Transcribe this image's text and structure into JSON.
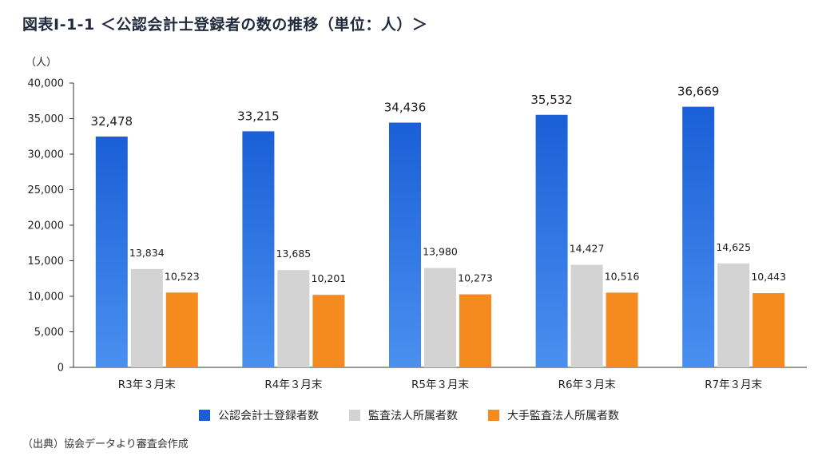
{
  "title": "図表Ⅰ-1-1 ＜公認会計士登録者の数の推移（単位：人）＞",
  "source": "（出典）協会データより審査会作成",
  "colors": {
    "series1": "#1a5fd6",
    "series1_light": "#4a90f0",
    "series2": "#d3d3d3",
    "series3": "#f58a1f",
    "axis": "#333333"
  },
  "chart_data": {
    "type": "bar",
    "unit_label": "（人）",
    "categories": [
      "R3年３月末",
      "R4年３月末",
      "R5年３月末",
      "R6年３月末",
      "R7年３月末"
    ],
    "series": [
      {
        "name": "公認会計士登録者数",
        "values": [
          32478,
          33215,
          34436,
          35532,
          36669
        ]
      },
      {
        "name": "監査法人所属者数",
        "values": [
          13834,
          13685,
          13980,
          14427,
          14625
        ]
      },
      {
        "name": "大手監査法人所属者数",
        "values": [
          10523,
          10201,
          10273,
          10516,
          10443
        ]
      }
    ],
    "value_labels": [
      [
        "32,478",
        "33,215",
        "34,436",
        "35,532",
        "36,669"
      ],
      [
        "13,834",
        "13,685",
        "13,980",
        "14,427",
        "14,625"
      ],
      [
        "10,523",
        "10,201",
        "10,273",
        "10,516",
        "10,443"
      ]
    ],
    "yticks": [
      0,
      5000,
      10000,
      15000,
      20000,
      25000,
      30000,
      35000,
      40000
    ],
    "ytick_labels": [
      "0",
      "5,000",
      "10,000",
      "15,000",
      "20,000",
      "25,000",
      "30,000",
      "35,000",
      "40,000"
    ],
    "ylim": [
      0,
      40000
    ],
    "grid": false,
    "legend_position": "bottom"
  }
}
